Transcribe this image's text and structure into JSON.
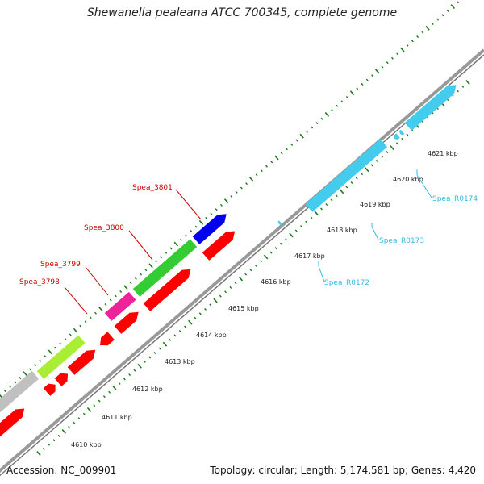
{
  "title": "Shewanella pealeana ATCC 700345, complete genome",
  "footer": {
    "accession": "Accession: NC_009901",
    "summary": "Topology: circular; Length: 5,174,581 bp; Genes: 4,420"
  },
  "colors": {
    "red": "#ff0000",
    "green": "#33cc33",
    "blue": "#0000ee",
    "magenta": "#ee2299",
    "lime": "#aaee33",
    "gray": "#c0c0c0",
    "cyan": "#44ccee",
    "label_red": "#cc0000",
    "label_cyan": "#33bbdd",
    "tick": "#1a7a1a",
    "backbone": "#888888"
  },
  "ticks": [
    {
      "label": "4610 kbp"
    },
    {
      "label": "4611 kbp"
    },
    {
      "label": "4612 kbp"
    },
    {
      "label": "4613 kbp"
    },
    {
      "label": "4614 kbp"
    },
    {
      "label": "4615 kbp"
    },
    {
      "label": "4616 kbp"
    },
    {
      "label": "4617 kbp"
    },
    {
      "label": "4618 kbp"
    },
    {
      "label": "4619 kbp"
    },
    {
      "label": "4620 kbp"
    },
    {
      "label": "4621 kbp"
    }
  ],
  "gene_labels": [
    {
      "name": "Spea_3801"
    },
    {
      "name": "Spea_3800"
    },
    {
      "name": "Spea_3799"
    },
    {
      "name": "Spea_3798"
    },
    {
      "name": "Spea_R0174"
    },
    {
      "name": "Spea_R0173"
    },
    {
      "name": "Spea_R0172"
    }
  ]
}
